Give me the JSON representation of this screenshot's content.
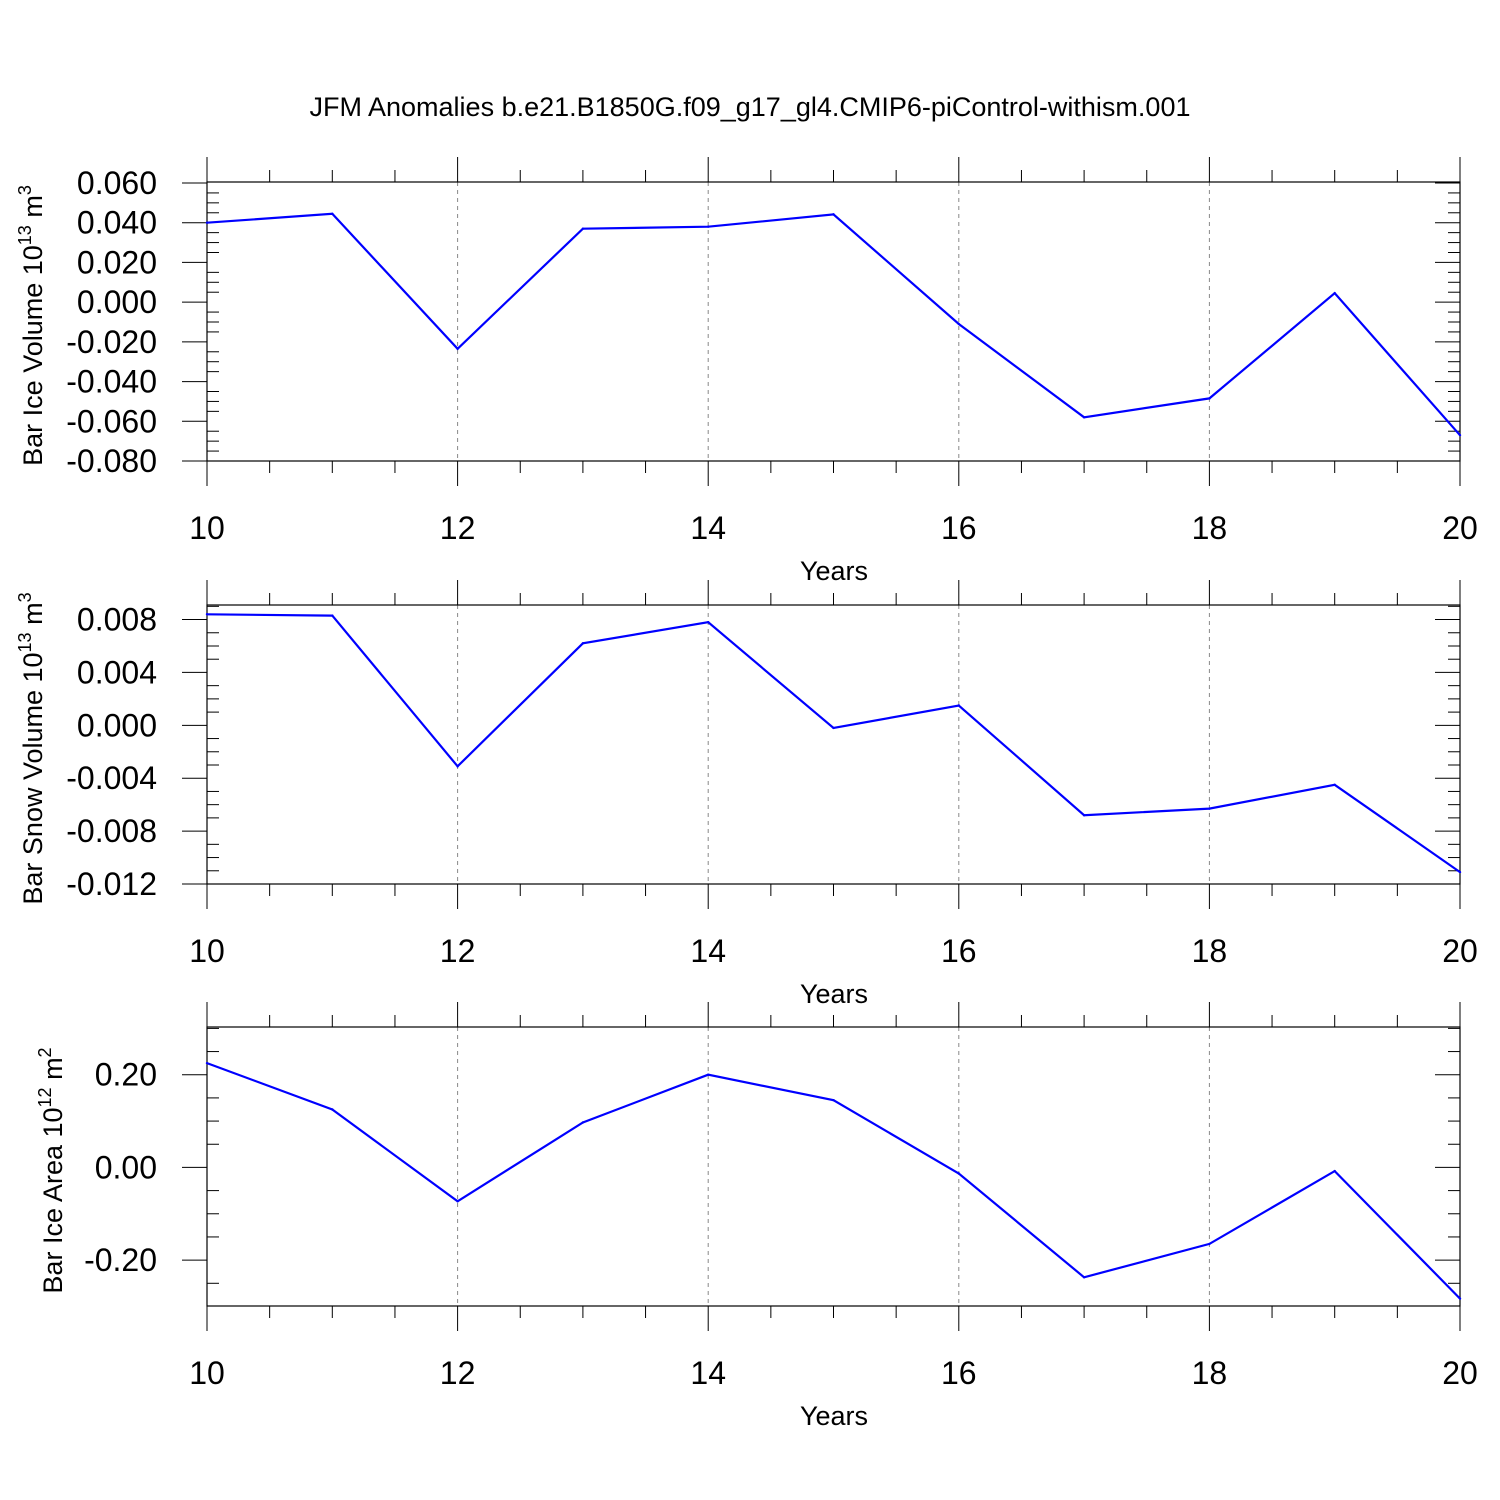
{
  "title": "JFM Anomalies b.e21.B1850G.f09_g17_gl4.CMIP6-piControl-withism.001",
  "chart_data": [
    {
      "type": "line",
      "title": "JFM Anomalies b.e21.B1850G.f09_g17_gl4.CMIP6-piControl-withism.001",
      "xlabel": "Years",
      "ylabel_parts": {
        "prefix": "Bar Ice Volume 10",
        "exp": "13",
        "unit": " m",
        "unit_exp": "3"
      },
      "x": [
        10,
        11,
        12,
        13,
        14,
        15,
        16,
        17,
        18,
        19,
        20
      ],
      "series": [
        {
          "name": "Bar Ice Volume",
          "color": "#0000ff",
          "values": [
            0.04,
            0.0445,
            -0.0235,
            0.037,
            0.038,
            0.0442,
            -0.011,
            -0.058,
            -0.0485,
            0.0045,
            -0.067
          ]
        }
      ],
      "xlim": [
        10,
        20
      ],
      "ylim": [
        -0.08,
        0.0605
      ],
      "xticks": [
        10,
        12,
        14,
        16,
        18,
        20
      ],
      "xtick_labels": [
        "10",
        "12",
        "14",
        "16",
        "18",
        "20"
      ],
      "yticks": [
        -0.08,
        -0.06,
        -0.04,
        -0.02,
        0.0,
        0.02,
        0.04,
        0.06
      ],
      "ytick_labels": [
        "-0.080",
        "-0.060",
        "-0.040",
        "-0.020",
        "0.000",
        "0.020",
        "0.040",
        "0.060"
      ],
      "y_minor_step": 0.005,
      "grid": "vertical dashed"
    },
    {
      "type": "line",
      "xlabel": "Years",
      "ylabel_parts": {
        "prefix": "Bar Snow Volume 10",
        "exp": "13",
        "unit": " m",
        "unit_exp": "3"
      },
      "x": [
        10,
        11,
        12,
        13,
        14,
        15,
        16,
        17,
        18,
        19,
        20
      ],
      "series": [
        {
          "name": "Bar Snow Volume",
          "color": "#0000ff",
          "values": [
            0.0084,
            0.0083,
            -0.0031,
            0.0062,
            0.0078,
            -0.0002,
            0.0015,
            -0.0068,
            -0.0063,
            -0.0045,
            -0.0111
          ]
        }
      ],
      "xlim": [
        10,
        20
      ],
      "ylim": [
        -0.012,
        0.0091
      ],
      "xticks": [
        10,
        12,
        14,
        16,
        18,
        20
      ],
      "xtick_labels": [
        "10",
        "12",
        "14",
        "16",
        "18",
        "20"
      ],
      "yticks": [
        -0.012,
        -0.008,
        -0.004,
        0.0,
        0.004,
        0.008
      ],
      "ytick_labels": [
        "-0.012",
        "-0.008",
        "-0.004",
        "0.000",
        "0.004",
        "0.008"
      ],
      "y_minor_step": 0.001,
      "grid": "vertical dashed"
    },
    {
      "type": "line",
      "xlabel": "Years",
      "ylabel_parts": {
        "prefix": "Bar Ice Area 10",
        "exp": "12",
        "unit": " m",
        "unit_exp": "2"
      },
      "x": [
        10,
        11,
        12,
        13,
        14,
        15,
        16,
        17,
        18,
        19,
        20
      ],
      "series": [
        {
          "name": "Bar Ice Area",
          "color": "#0000ff",
          "values": [
            0.225,
            0.125,
            -0.073,
            0.097,
            0.2,
            0.145,
            -0.013,
            -0.237,
            -0.165,
            -0.008,
            -0.283
          ]
        }
      ],
      "xlim": [
        10,
        20
      ],
      "ylim": [
        -0.299,
        0.303
      ],
      "xticks": [
        10,
        12,
        14,
        16,
        18,
        20
      ],
      "xtick_labels": [
        "10",
        "12",
        "14",
        "16",
        "18",
        "20"
      ],
      "yticks": [
        -0.2,
        0.0,
        0.2
      ],
      "ytick_labels": [
        "-0.20",
        "0.00",
        "0.20"
      ],
      "y_minor_step": 0.05,
      "grid": "vertical dashed"
    }
  ]
}
